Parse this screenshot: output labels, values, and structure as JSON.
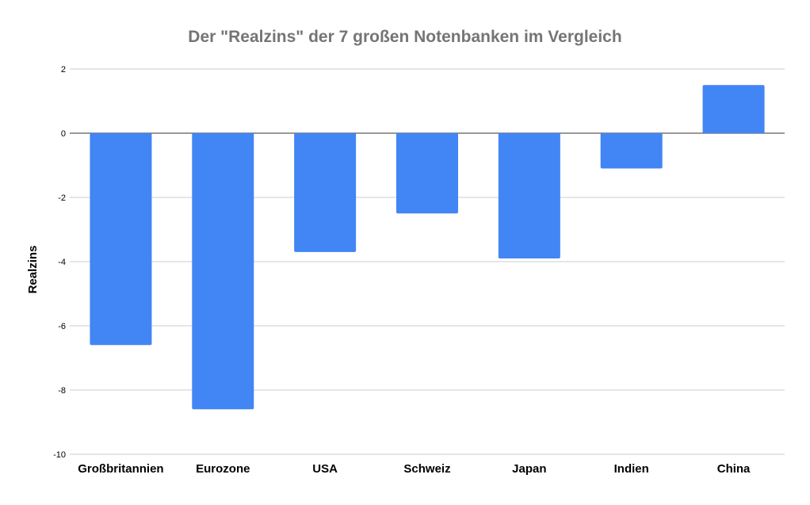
{
  "chart_data": {
    "type": "bar",
    "title": "Der \"Realzins\" der 7 großen Notenbanken im Vergleich",
    "xlabel": "",
    "ylabel": "Realzins",
    "categories": [
      "Großbritannien",
      "Eurozone",
      "USA",
      "Schweiz",
      "Japan",
      "Indien",
      "China"
    ],
    "values": [
      -6.6,
      -8.6,
      -3.7,
      -2.5,
      -3.9,
      -1.1,
      1.5
    ],
    "ylim": [
      -10,
      2
    ],
    "yticks": [
      "2",
      "0",
      "-2",
      "-4",
      "-6",
      "-8",
      "-10"
    ],
    "grid": true,
    "bar_color": "#4285f4",
    "title_color": "#757575"
  }
}
